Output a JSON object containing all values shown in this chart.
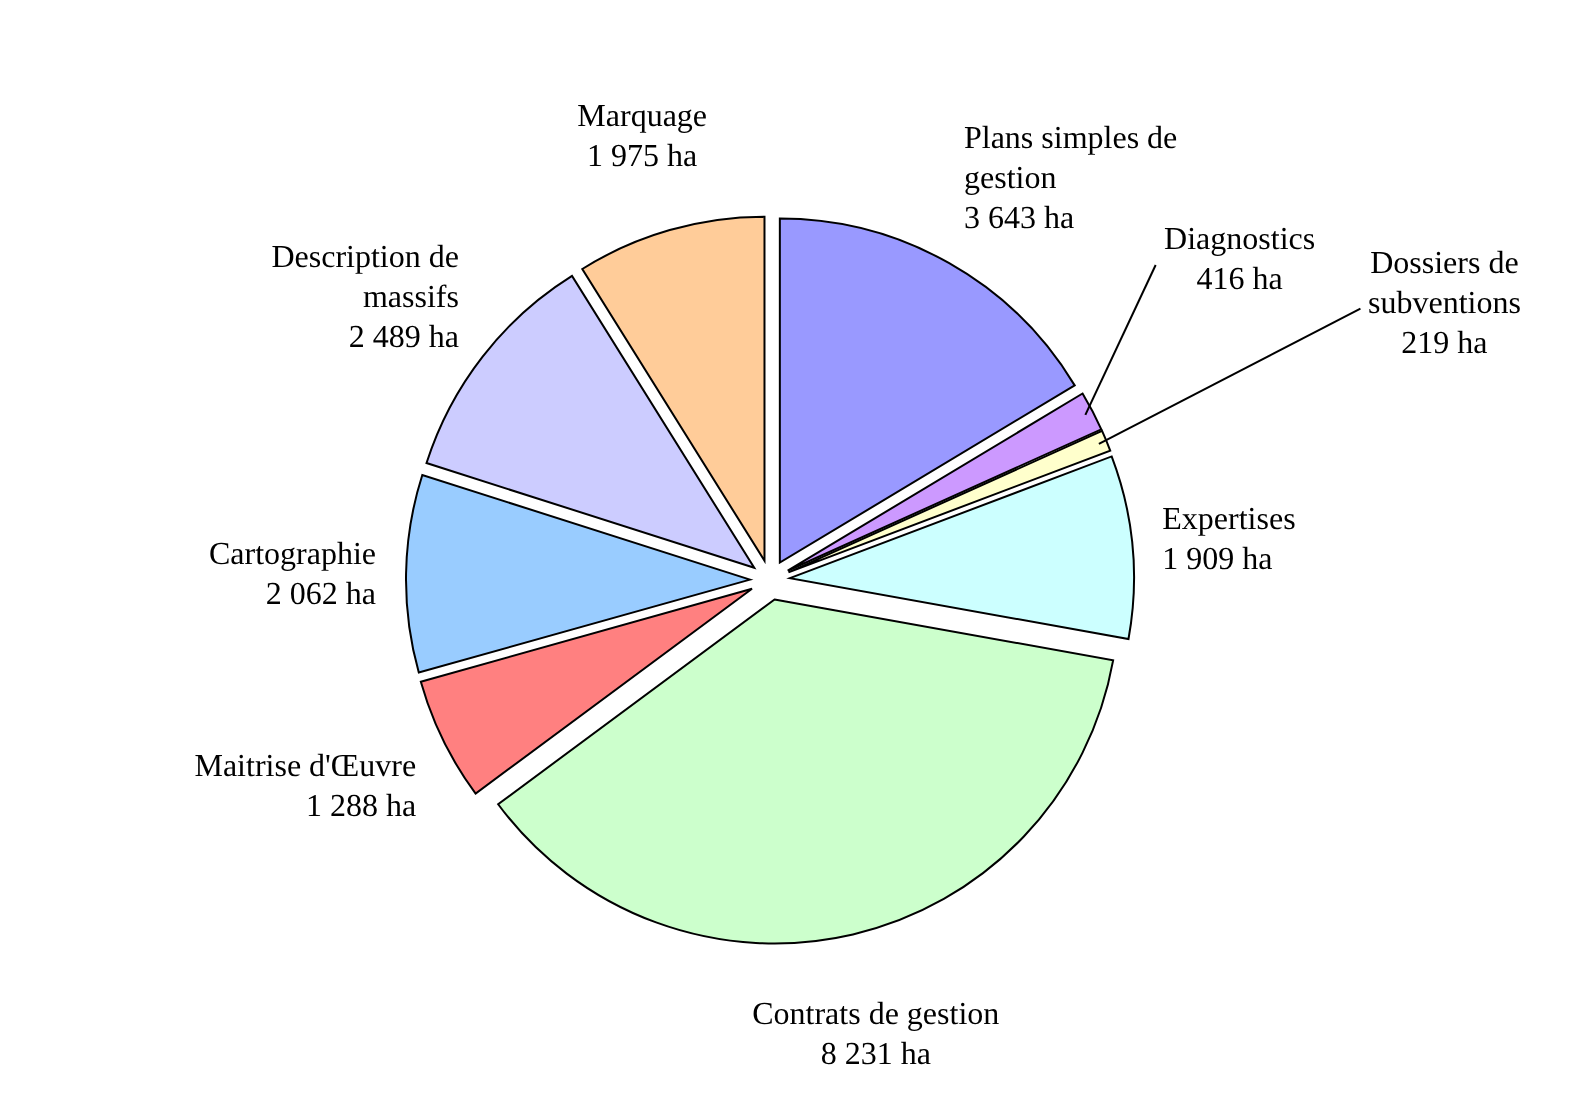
{
  "chart_data": {
    "type": "pie",
    "categories": [
      "Plans simples de gestion",
      "Diagnostics",
      "Dossiers de subventions",
      "Expertises",
      "Contrats de gestion",
      "Maitrise d'Œuvre",
      "Cartographie",
      "Description de massifs",
      "Marquage"
    ],
    "values": [
      3643,
      416,
      219,
      1909,
      8231,
      1288,
      2062,
      2489,
      1975
    ],
    "value_labels": [
      "3 643 ha",
      "416 ha",
      "219 ha",
      "1 909 ha",
      "8 231 ha",
      "1 288 ha",
      "2 062 ha",
      "2 489 ha",
      "1 975 ha"
    ],
    "colors": [
      "#9999ff",
      "#cc99ff",
      "#ffffcc",
      "#ccffff",
      "#ccffcc",
      "#ff8080",
      "#99ccff",
      "#ccccff",
      "#ffcc99"
    ],
    "legend": false
  }
}
